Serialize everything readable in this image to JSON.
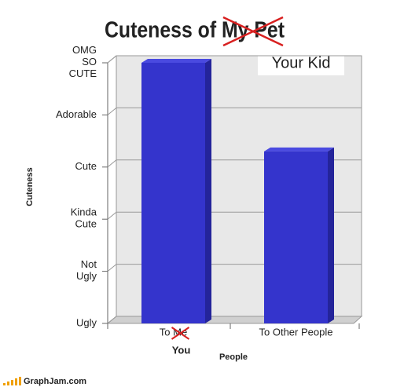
{
  "chart_data": {
    "type": "bar",
    "title": "Cuteness of My Pet",
    "title_correction": "Your Kid",
    "categories": [
      "To Me",
      "To Other People"
    ],
    "category_correction": "You",
    "values": [
      5,
      3.3
    ],
    "color": "#3434cc",
    "ylim": [
      0,
      5
    ],
    "yticks": [
      {
        "value": 0,
        "label": "Ugly"
      },
      {
        "value": 1,
        "label": "Not Ugly"
      },
      {
        "value": 2,
        "label": "Kinda Cute"
      },
      {
        "value": 3,
        "label": "Cute"
      },
      {
        "value": 4,
        "label": "Adorable"
      },
      {
        "value": 5,
        "label": "OMG SO CUTE"
      }
    ],
    "grid": true,
    "y_label": "Cuteness",
    "x_label": "People",
    "footer": "GraphJam.com"
  }
}
